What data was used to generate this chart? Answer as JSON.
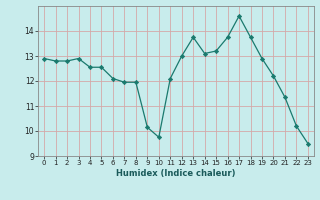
{
  "y": [
    12.9,
    12.8,
    12.8,
    12.9,
    12.55,
    12.55,
    12.1,
    11.95,
    11.95,
    10.15,
    9.75,
    12.1,
    13.0,
    13.75,
    13.1,
    13.2,
    13.75,
    14.6,
    13.75,
    12.9,
    12.2,
    11.35,
    10.2,
    9.5
  ],
  "xlabel": "Humidex (Indice chaleur)",
  "line_color": "#1a7a6e",
  "marker_color": "#1a7a6e",
  "bg_color": "#c8ecec",
  "grid_major_color": "#e8c8c8",
  "grid_minor_color": "#e8e8f0",
  "xlim": [
    -0.5,
    23.5
  ],
  "ylim": [
    9,
    15
  ],
  "yticks": [
    9,
    10,
    11,
    12,
    13,
    14
  ],
  "xticks": [
    0,
    1,
    2,
    3,
    4,
    5,
    6,
    7,
    8,
    9,
    10,
    11,
    12,
    13,
    14,
    15,
    16,
    17,
    18,
    19,
    20,
    21,
    22,
    23
  ]
}
